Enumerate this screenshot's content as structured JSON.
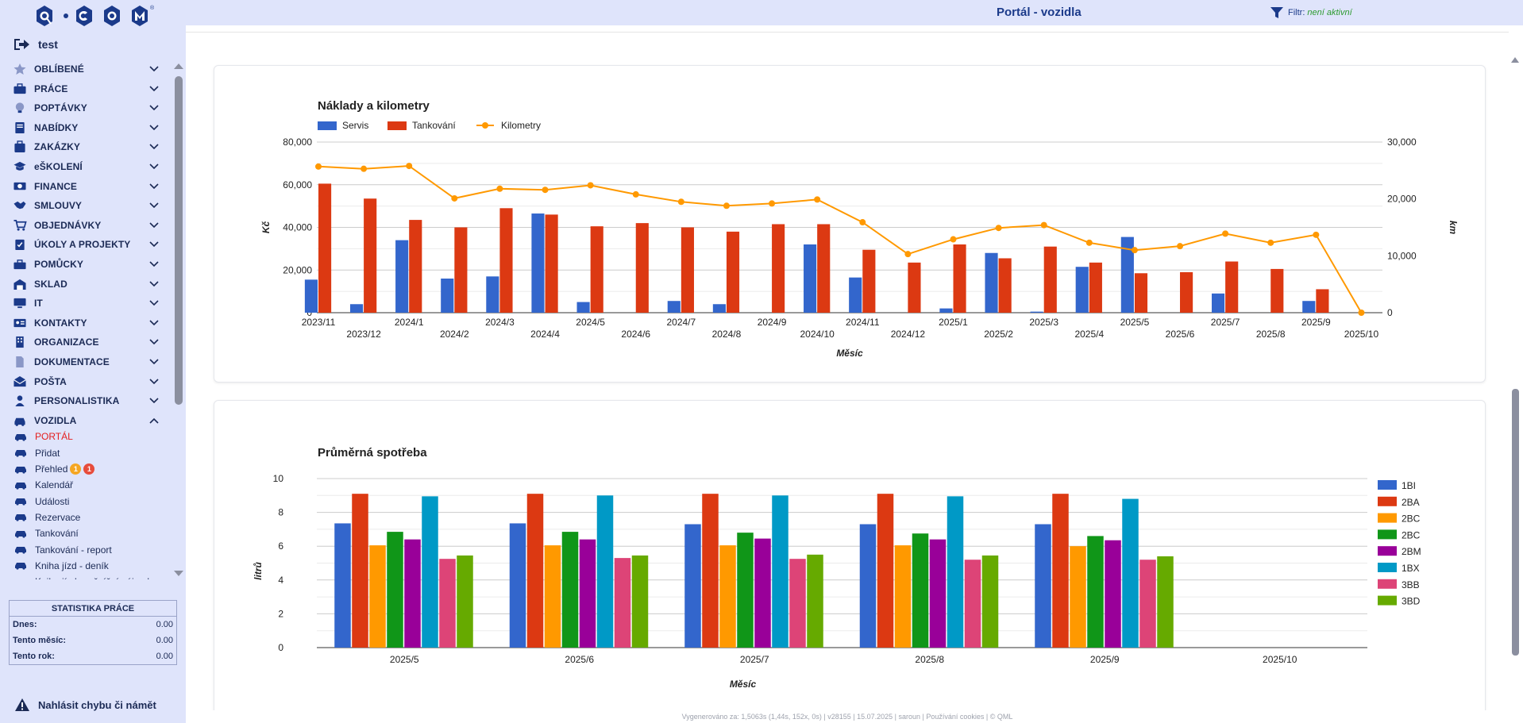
{
  "app": {
    "logo_text": "Q·COM",
    "user_name": "test",
    "page_title": "Portál - vozidla",
    "filter_label": "Filtr:",
    "filter_value": "není aktivní"
  },
  "menu": [
    {
      "label": "OBLÍBENÉ",
      "icon": "star-icon"
    },
    {
      "label": "PRÁCE",
      "icon": "briefcase-icon"
    },
    {
      "label": "POPTÁVKY",
      "icon": "lightbulb-icon"
    },
    {
      "label": "NABÍDKY",
      "icon": "document-icon"
    },
    {
      "label": "ZAKÁZKY",
      "icon": "suitcase-icon"
    },
    {
      "label": "eŠKOLENÍ",
      "icon": "graduation-cap-icon"
    },
    {
      "label": "FINANCE",
      "icon": "money-icon"
    },
    {
      "label": "SMLOUVY",
      "icon": "handshake-icon"
    },
    {
      "label": "OBJEDNÁVKY",
      "icon": "cart-icon"
    },
    {
      "label": "ÚKOLY A PROJEKTY",
      "icon": "clipboard-check-icon"
    },
    {
      "label": "POMŮCKY",
      "icon": "toolbox-icon"
    },
    {
      "label": "SKLAD",
      "icon": "warehouse-icon"
    },
    {
      "label": "IT",
      "icon": "monitor-icon"
    },
    {
      "label": "KONTAKTY",
      "icon": "contact-card-icon"
    },
    {
      "label": "ORGANIZACE",
      "icon": "building-icon"
    },
    {
      "label": "DOKUMENTACE",
      "icon": "file-icon"
    },
    {
      "label": "POŠTA",
      "icon": "envelope-icon"
    },
    {
      "label": "PERSONALISTIKA",
      "icon": "person-icon"
    },
    {
      "label": "VOZIDLA",
      "icon": "car-icon"
    }
  ],
  "vozidla_sub": [
    {
      "label": "PORTÁL",
      "active": true
    },
    {
      "label": "Přidat"
    },
    {
      "label": "Přehled",
      "badges": [
        "1",
        "1"
      ]
    },
    {
      "label": "Kalendář"
    },
    {
      "label": "Události"
    },
    {
      "label": "Rezervace"
    },
    {
      "label": "Tankování"
    },
    {
      "label": "Tankování - report"
    },
    {
      "label": "Kniha jízd - deník"
    },
    {
      "label": "Kniha jízd - měsíční nájezdy"
    }
  ],
  "stats": {
    "title": "STATISTIKA PRÁCE",
    "rows": [
      {
        "label": "Dnes:",
        "value": "0.00"
      },
      {
        "label": "Tento měsíc:",
        "value": "0.00"
      },
      {
        "label": "Tento rok:",
        "value": "0.00"
      }
    ]
  },
  "report_label": "Nahlásit chybu či námět",
  "footer_text": "Vygenerováno za: 1,5063s (1,44s, 152x, 0s) | v28155 | 15.07.2025 | saroun | Používání cookies | © QML",
  "colors": {
    "servis": "#3366cc",
    "tankovani": "#dc3912",
    "kilometry": "#ff9900",
    "accent_red": "#e41e1e",
    "sidebar_bg": "#dfe4fb"
  },
  "chart_data": [
    {
      "type": "bar",
      "title": "Náklady a kilometry",
      "xlabel": "Měsíc",
      "ylabel": "Kč",
      "y2label": "km",
      "ylim": [
        0,
        80000
      ],
      "y2lim": [
        0,
        30000
      ],
      "yticks": [
        "0",
        "20,000",
        "40,000",
        "60,000",
        "80,000"
      ],
      "y2ticks": [
        "0",
        "10,000",
        "20,000",
        "30,000"
      ],
      "categories": [
        "2023/11",
        "2023/12",
        "2024/1",
        "2024/2",
        "2024/3",
        "2024/4",
        "2024/5",
        "2024/6",
        "2024/7",
        "2024/8",
        "2024/9",
        "2024/10",
        "2024/11",
        "2024/12",
        "2025/1",
        "2025/2",
        "2025/3",
        "2025/4",
        "2025/5",
        "2025/6",
        "2025/7",
        "2025/8",
        "2025/9",
        "2025/10"
      ],
      "series": [
        {
          "name": "Servis",
          "type": "bar",
          "axis": "left",
          "color": "#3366cc",
          "values": [
            15500,
            4000,
            34000,
            16000,
            17000,
            46500,
            5000,
            0,
            5500,
            4000,
            0,
            32000,
            16500,
            0,
            2000,
            28000,
            500,
            21500,
            35500,
            0,
            9000,
            0,
            5500,
            0
          ]
        },
        {
          "name": "Tankování",
          "type": "bar",
          "axis": "left",
          "color": "#dc3912",
          "values": [
            60500,
            53500,
            43500,
            40000,
            49000,
            46000,
            40500,
            42000,
            40000,
            38000,
            41500,
            41500,
            29500,
            23500,
            32000,
            25500,
            31000,
            23500,
            18500,
            19000,
            24000,
            20500,
            11000,
            0
          ]
        },
        {
          "name": "Kilometry",
          "type": "line",
          "axis": "right",
          "color": "#ff9900",
          "values": [
            25700,
            25300,
            25800,
            20100,
            21800,
            21600,
            22400,
            20800,
            19500,
            18800,
            19200,
            19900,
            15900,
            10300,
            12900,
            14900,
            15400,
            12300,
            11000,
            11700,
            13900,
            12300,
            13700,
            0
          ]
        }
      ],
      "legend": "top-left"
    },
    {
      "type": "bar",
      "title": "Průměrná spotřeba",
      "xlabel": "Měsíc",
      "ylabel": "litrů",
      "ylim": [
        0,
        10
      ],
      "yticks": [
        "0",
        "2",
        "4",
        "6",
        "8",
        "10"
      ],
      "categories": [
        "2025/5",
        "2025/6",
        "2025/7",
        "2025/8",
        "2025/9",
        "2025/10"
      ],
      "series": [
        {
          "name": "1BI",
          "color": "#3366cc",
          "values": [
            7.35,
            7.35,
            7.3,
            7.3,
            7.3,
            0
          ]
        },
        {
          "name": "2BA",
          "color": "#dc3912",
          "values": [
            9.1,
            9.1,
            9.1,
            9.1,
            9.1,
            0
          ]
        },
        {
          "name": "2BC",
          "color": "#ff9900",
          "values": [
            6.05,
            6.05,
            6.05,
            6.05,
            6.0,
            0
          ]
        },
        {
          "name": "2BC",
          "color": "#109618",
          "values": [
            6.85,
            6.85,
            6.8,
            6.75,
            6.6,
            0
          ]
        },
        {
          "name": "2BM",
          "color": "#990099",
          "values": [
            6.4,
            6.4,
            6.45,
            6.4,
            6.35,
            0
          ]
        },
        {
          "name": "1BX",
          "color": "#0099c6",
          "values": [
            8.95,
            9.0,
            9.0,
            8.95,
            8.8,
            0
          ]
        },
        {
          "name": "3BB",
          "color": "#dd4477",
          "values": [
            5.25,
            5.3,
            5.25,
            5.2,
            5.2,
            0
          ]
        },
        {
          "name": "3BD",
          "color": "#66aa00",
          "values": [
            5.45,
            5.45,
            5.5,
            5.45,
            5.4,
            0
          ]
        }
      ],
      "legend": "right"
    }
  ]
}
